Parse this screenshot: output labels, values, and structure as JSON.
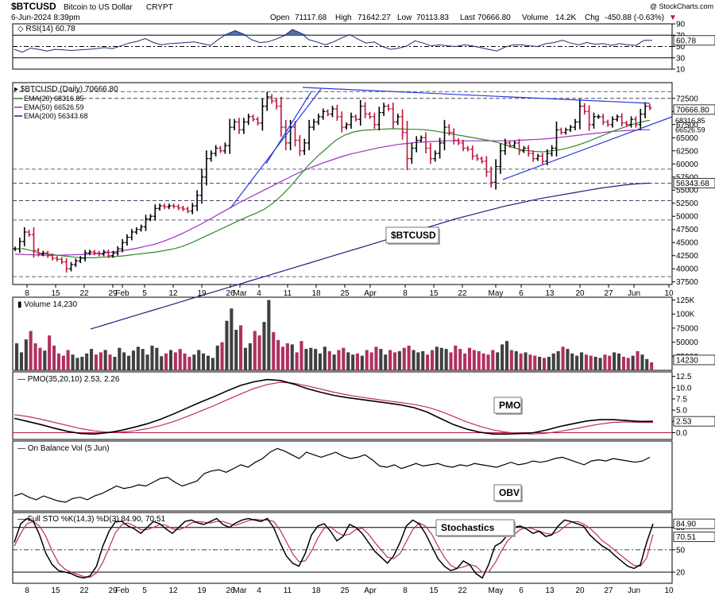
{
  "header": {
    "symbol": "$BTCUSD",
    "name": "Bitcoin to US Dollar",
    "exchange": "CRYPT",
    "date": "6-Jun-2024 8:39pm",
    "open_label": "Open",
    "open": "71117.68",
    "high_label": "High",
    "high": "71642.27",
    "low_label": "Low",
    "low": "70113.83",
    "last_label": "Last",
    "last": "70666.80",
    "volume_label": "Volume",
    "volume": "14.2K",
    "chg_label": "Chg",
    "chg": "-450.88 (-0.63%)",
    "chg_arrow": "▼",
    "watermark": "@ StockCharts.com"
  },
  "colors": {
    "up": "#000000",
    "down": "#c0143c",
    "ema20": "#2e8b2e",
    "ema50": "#a030c0",
    "ema200": "#1a237e",
    "trend": "#2a3ad8",
    "rsi_fill": "#3f5f9f",
    "vol_up": "#404040",
    "vol_down": "#b03060",
    "pmo_signal": "#c03050",
    "sto_d": "#c03050"
  },
  "chart_data": [
    {
      "id": "rsi",
      "type": "line",
      "title": "RSI(14) 60.78",
      "ticks": [
        "90",
        "70",
        "50",
        "30",
        "10"
      ],
      "ylim": [
        10,
        90
      ],
      "levels": [
        70,
        30
      ],
      "last_value": "60.78",
      "values": [
        45,
        40,
        47,
        45,
        42,
        45,
        44,
        43,
        44,
        45,
        46,
        48,
        46,
        51,
        56,
        59,
        64,
        57,
        53,
        55,
        56,
        57,
        58,
        55,
        52,
        63,
        72,
        78,
        72,
        62,
        57,
        58,
        63,
        69,
        80,
        74,
        62,
        58,
        53,
        58,
        65,
        71,
        63,
        56,
        58,
        50,
        45,
        47,
        51,
        60,
        56,
        51,
        53,
        51,
        50,
        53,
        51,
        48,
        45,
        42,
        49,
        53,
        53,
        51,
        50,
        55,
        57,
        61,
        56,
        53,
        57,
        54,
        55,
        52,
        55,
        53,
        52,
        61,
        61
      ]
    },
    {
      "id": "price",
      "type": "ohlc",
      "title": "$BTCUSD (Daily) 70666.80",
      "label": "$BTCUSD",
      "ylim": [
        37000,
        75500
      ],
      "ticks": [
        "72500",
        "70000",
        "67500",
        "65000",
        "62500",
        "60000",
        "57500",
        "55000",
        "52500",
        "50000",
        "47500",
        "45000",
        "42500",
        "40000",
        "37500"
      ],
      "x_ticks": [
        "8",
        "15",
        "22",
        "29",
        "Feb",
        "5",
        "12",
        "19",
        "26",
        "Mar",
        "4",
        "11",
        "18",
        "25",
        "Apr",
        "8",
        "15",
        "22",
        "May",
        "6",
        "13",
        "20",
        "27",
        "Jun",
        "10"
      ],
      "legend": [
        {
          "name": "EMA(20) 68316.85"
        },
        {
          "name": "EMA(50) 66526.59"
        },
        {
          "name": "EMA(200) 56343.68"
        }
      ],
      "right_labels": {
        "last": "70666.80",
        "ema20": "68316.85",
        "ema50": "66526.59",
        "ema200": "56343.68"
      },
      "close": [
        43800,
        45200,
        47000,
        46500,
        43500,
        42800,
        43000,
        42500,
        42000,
        41800,
        41300,
        40000,
        40800,
        41500,
        42000,
        43000,
        43200,
        43000,
        42800,
        43200,
        42500,
        43000,
        43800,
        45000,
        46000,
        47000,
        47500,
        48000,
        49500,
        50000,
        51500,
        52000,
        51800,
        52000,
        51900,
        51600,
        51400,
        51000,
        52000,
        54000,
        57500,
        61000,
        62000,
        63000,
        62500,
        63500,
        67000,
        68000,
        66500,
        68000,
        69000,
        68500,
        67800,
        71000,
        72800,
        72000,
        71000,
        67000,
        64000,
        67000,
        64500,
        62500,
        64000,
        67000,
        68000,
        69000,
        70000,
        69500,
        70500,
        69000,
        67000,
        67500,
        69000,
        68500,
        71000,
        69500,
        69000,
        67500,
        69800,
        71000,
        70500,
        68000,
        69000,
        66000,
        61000,
        63000,
        64500,
        65000,
        63000,
        61000,
        62000,
        64000,
        67000,
        66000,
        64500,
        64000,
        63000,
        62800,
        61500,
        61000,
        60500,
        58500,
        56500,
        59500,
        62500,
        64000,
        63500,
        64000,
        62500,
        63000,
        62000,
        61000,
        61500,
        60500,
        62000,
        63000,
        66500,
        66000,
        66500,
        67000,
        68000,
        71000,
        70000,
        67500,
        69000,
        69000,
        68000,
        67500,
        68500,
        69000,
        67800,
        67500,
        68500,
        67500,
        69500,
        71000,
        70667
      ],
      "ema20": [
        43900,
        43500,
        43000,
        42800,
        42600,
        42400,
        42200,
        42100,
        42100,
        42200,
        42300,
        42400,
        42600,
        42800,
        43000,
        43200,
        43500,
        43800,
        44300,
        45000,
        45800,
        46600,
        47400,
        48200,
        49000,
        49800,
        50500,
        51300,
        52500,
        54000,
        55800,
        57800,
        59800,
        61500,
        63000,
        64500,
        65500,
        66100,
        66400,
        66500,
        66600,
        66700,
        66700,
        66600,
        66600,
        66500,
        66300,
        66000,
        65700,
        65400,
        65100,
        64800,
        64500,
        64100,
        63600,
        63000,
        62600,
        62400,
        62300,
        62500,
        62700,
        63100,
        63600,
        64200,
        64900,
        65600,
        66300,
        66900,
        67500,
        68000,
        68316
      ],
      "ema50": [
        42800,
        42700,
        42650,
        42600,
        42600,
        42600,
        42650,
        42700,
        42800,
        42900,
        43100,
        43300,
        43600,
        43900,
        44300,
        44700,
        45300,
        46000,
        46800,
        47700,
        48600,
        49600,
        50600,
        51600,
        52600,
        53500,
        54400,
        55300,
        56200,
        57100,
        58000,
        58800,
        59500,
        60200,
        60800,
        61400,
        61900,
        62300,
        62700,
        63100,
        63400,
        63700,
        63900,
        64100,
        64200,
        64300,
        64400,
        64400,
        64400,
        64400,
        64400,
        64400,
        64400,
        64400,
        64500,
        64600,
        64700,
        64800,
        65000,
        65200,
        65400,
        65600,
        65800,
        66000,
        66200,
        66300,
        66400,
        66500,
        66527
      ],
      "ema200": [
        28500,
        29200,
        29900,
        30600,
        31300,
        32000,
        32700,
        33400,
        34100,
        34800,
        35500,
        36200,
        36900,
        37600,
        38300,
        39000,
        39700,
        40400,
        41100,
        41800,
        42500,
        43200,
        43900,
        44600,
        45300,
        46000,
        46700,
        47400,
        48100,
        48800,
        49500,
        50100,
        50700,
        51300,
        51900,
        52400,
        52900,
        53400,
        53800,
        54200,
        54600,
        55000,
        55400,
        55700,
        56000,
        56200,
        56343
      ],
      "trendlines": [
        {
          "from": [
            0.55,
            50400
          ],
          "to": [
            0.37,
            73800
          ],
          "x": "index-space"
        }
      ]
    },
    {
      "id": "volume",
      "type": "bar",
      "title": "Volume 14,230",
      "ticks": [
        "125K",
        "100K",
        "75000",
        "50000",
        "25000"
      ],
      "ylim": [
        0,
        130000
      ],
      "last_value": "14230",
      "values": [
        48000,
        32000,
        55000,
        70000,
        48000,
        40000,
        35000,
        62000,
        44000,
        30000,
        26000,
        36000,
        28000,
        22000,
        24000,
        30000,
        38000,
        28000,
        32000,
        36000,
        28000,
        24000,
        40000,
        32000,
        26000,
        35000,
        42000,
        38000,
        28000,
        44000,
        40000,
        25000,
        30000,
        36000,
        32000,
        38000,
        30000,
        24000,
        28000,
        36000,
        30000,
        26000,
        22000,
        44000,
        50000,
        88000,
        110000,
        72000,
        80000,
        40000,
        48000,
        70000,
        62000,
        86000,
        125000,
        68000,
        54000,
        42000,
        48000,
        46000,
        32000,
        52000,
        38000,
        40000,
        38000,
        30000,
        42000,
        34000,
        28000,
        36000,
        40000,
        32000,
        28000,
        30000,
        26000,
        36000,
        32000,
        42000,
        38000,
        28000,
        36000,
        32000,
        34000,
        40000,
        44000,
        36000,
        32000,
        34000,
        28000,
        36000,
        42000,
        40000,
        38000,
        32000,
        44000,
        38000,
        30000,
        40000,
        36000,
        34000,
        30000,
        28000,
        36000,
        32000,
        46000,
        52000,
        36000,
        34000,
        30000,
        32000,
        28000,
        26000,
        24000,
        22000,
        24000,
        30000,
        34000,
        42000,
        38000,
        30000,
        26000,
        32000,
        28000,
        26000,
        24000,
        22000,
        28000,
        26000,
        32000,
        30000,
        24000,
        22000,
        26000,
        34000,
        28000,
        20000,
        14230
      ]
    },
    {
      "id": "pmo",
      "type": "line",
      "title": "PMO(35,20,10) 2.53, 2.26",
      "label": "PMO",
      "ticks": [
        "12.5",
        "10.0",
        "7.5",
        "5.0",
        "2.5",
        "0.0"
      ],
      "ylim": [
        -1.5,
        13.5
      ],
      "last_value": "2.53",
      "values": [
        3.2,
        2.5,
        1.8,
        1.0,
        0.3,
        -0.2,
        -0.3,
        0.0,
        0.5,
        1.2,
        2.0,
        3.0,
        4.2,
        5.5,
        6.8,
        8.0,
        9.3,
        10.5,
        11.3,
        11.8,
        11.6,
        10.8,
        9.8,
        9.0,
        8.3,
        7.8,
        7.4,
        7.0,
        6.6,
        6.2,
        5.6,
        4.6,
        3.2,
        1.8,
        0.8,
        0.1,
        -0.3,
        -0.3,
        -0.2,
        0.0,
        0.6,
        1.4,
        2.0,
        2.6,
        2.9,
        2.9,
        2.7,
        2.5,
        2.53
      ],
      "signal": [
        4.0,
        3.6,
        3.0,
        2.3,
        1.6,
        0.9,
        0.4,
        0.1,
        0.1,
        0.4,
        0.9,
        1.6,
        2.5,
        3.6,
        4.8,
        6.0,
        7.3,
        8.6,
        9.8,
        10.7,
        11.2,
        11.0,
        10.4,
        9.7,
        9.0,
        8.4,
        7.9,
        7.5,
        7.1,
        6.7,
        6.3,
        5.7,
        4.8,
        3.6,
        2.4,
        1.4,
        0.6,
        0.1,
        -0.2,
        -0.3,
        -0.1,
        0.3,
        0.8,
        1.4,
        1.9,
        2.3,
        2.4,
        2.3,
        2.26
      ]
    },
    {
      "id": "obv",
      "type": "line",
      "title": "On Balance Vol (5 Jun)",
      "label": "OBV",
      "values": [
        22,
        24,
        21,
        19,
        22,
        20,
        18,
        17,
        20,
        21,
        19,
        22,
        24,
        27,
        30,
        28,
        29,
        31,
        30,
        33,
        36,
        37,
        33,
        30,
        32,
        34,
        40,
        42,
        43,
        41,
        44,
        47,
        45,
        49,
        52,
        57,
        60,
        58,
        55,
        52,
        57,
        55,
        53,
        55,
        57,
        54,
        52,
        53,
        55,
        51,
        46,
        45,
        47,
        44,
        46,
        48,
        46,
        47,
        48,
        46,
        45,
        47,
        46,
        48,
        47,
        46,
        45,
        47,
        49,
        47,
        48,
        50,
        49,
        50,
        52,
        53,
        51,
        49,
        47,
        50,
        51,
        50,
        52,
        51,
        50,
        49,
        50,
        53
      ]
    },
    {
      "id": "sto",
      "type": "line",
      "title": "Full STO %K(14,3) %D(3) 84.90, 70.51",
      "label": "Stochastics",
      "ticks": [
        "80",
        "50",
        "20"
      ],
      "ylim": [
        5,
        100
      ],
      "levels": [
        80,
        50,
        20
      ],
      "k_label": "84.90",
      "d_label": "70.51",
      "k": [
        60,
        85,
        92,
        88,
        70,
        45,
        30,
        22,
        20,
        18,
        14,
        12,
        15,
        28,
        55,
        75,
        88,
        88,
        82,
        78,
        72,
        80,
        88,
        85,
        78,
        72,
        80,
        88,
        90,
        86,
        84,
        88,
        92,
        84,
        80,
        86,
        90,
        92,
        90,
        88,
        92,
        80,
        60,
        42,
        32,
        28,
        45,
        70,
        82,
        85,
        75,
        62,
        68,
        84,
        80,
        72,
        60,
        48,
        40,
        32,
        42,
        60,
        82,
        90,
        85,
        72,
        55,
        38,
        28,
        22,
        25,
        35,
        30,
        18,
        12,
        30,
        55,
        60,
        70,
        80,
        82,
        78,
        72,
        75,
        68,
        70,
        82,
        90,
        88,
        85,
        82,
        70,
        62,
        55,
        50,
        42,
        35,
        28,
        25,
        30,
        60,
        84.9
      ],
      "d": [
        55,
        72,
        85,
        88,
        82,
        68,
        48,
        32,
        24,
        20,
        17,
        14,
        13,
        19,
        33,
        53,
        73,
        84,
        86,
        82,
        77,
        77,
        80,
        84,
        83,
        78,
        77,
        80,
        86,
        88,
        87,
        86,
        88,
        88,
        85,
        83,
        86,
        89,
        91,
        90,
        90,
        88,
        77,
        61,
        45,
        34,
        35,
        48,
        66,
        79,
        81,
        74,
        69,
        71,
        77,
        79,
        71,
        60,
        50,
        40,
        38,
        45,
        61,
        77,
        86,
        82,
        71,
        55,
        40,
        29,
        25,
        27,
        30,
        28,
        20,
        20,
        32,
        48,
        62,
        70,
        77,
        80,
        78,
        75,
        72,
        71,
        74,
        81,
        87,
        88,
        85,
        79,
        71,
        62,
        56,
        49,
        42,
        35,
        29,
        28,
        39,
        70.51
      ]
    }
  ]
}
